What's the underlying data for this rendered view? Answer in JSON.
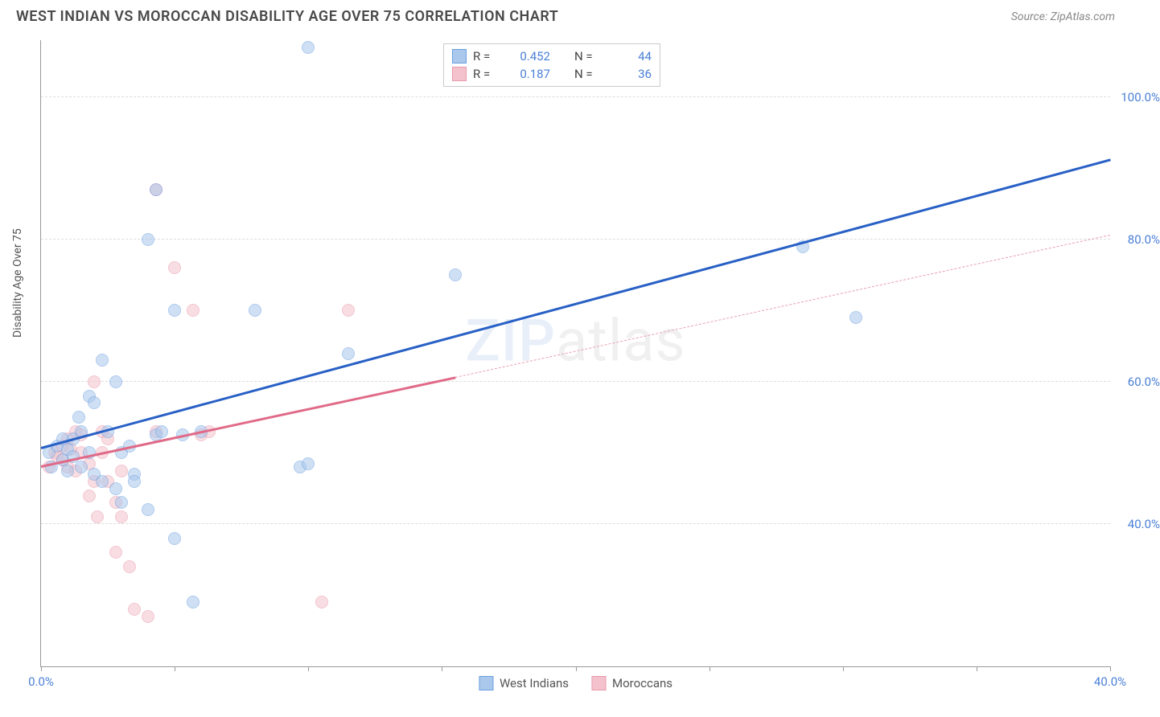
{
  "title": "WEST INDIAN VS MOROCCAN DISABILITY AGE OVER 75 CORRELATION CHART",
  "source": "Source: ZipAtlas.com",
  "y_axis_label": "Disability Age Over 75",
  "watermark": {
    "part1": "ZIP",
    "part2": "atlas"
  },
  "chart": {
    "type": "scatter",
    "background_color": "#ffffff",
    "grid_color": "#dddddd",
    "axis_color": "#999999",
    "tick_label_color": "#4a7fd6",
    "xlim": [
      0,
      40
    ],
    "ylim": [
      20,
      108
    ],
    "x_ticks": [
      0,
      5,
      10,
      15,
      20,
      25,
      30,
      35,
      40
    ],
    "x_tick_labels": {
      "0": "0.0%",
      "40": "40.0%"
    },
    "y_gridlines": [
      40,
      60,
      80,
      100
    ],
    "y_tick_labels": {
      "40": "40.0%",
      "60": "60.0%",
      "80": "80.0%",
      "100": "100.0%"
    },
    "marker_size": 16,
    "marker_opacity": 0.55
  },
  "series": {
    "west_indians": {
      "label": "West Indians",
      "fill_color": "#a9c8ec",
      "stroke_color": "#6c9fe0",
      "points": [
        [
          0.3,
          50
        ],
        [
          0.4,
          48
        ],
        [
          0.6,
          51
        ],
        [
          0.8,
          49
        ],
        [
          0.8,
          52
        ],
        [
          1.0,
          47.5
        ],
        [
          1.0,
          50.5
        ],
        [
          1.2,
          49.5
        ],
        [
          1.2,
          52
        ],
        [
          1.4,
          55
        ],
        [
          1.5,
          48
        ],
        [
          1.5,
          53
        ],
        [
          1.8,
          50
        ],
        [
          1.8,
          58
        ],
        [
          2.0,
          47
        ],
        [
          2.0,
          57
        ],
        [
          2.3,
          46
        ],
        [
          2.3,
          63
        ],
        [
          2.5,
          53
        ],
        [
          2.8,
          45
        ],
        [
          2.8,
          60
        ],
        [
          3.0,
          43
        ],
        [
          3.0,
          50
        ],
        [
          3.3,
          51
        ],
        [
          3.5,
          47
        ],
        [
          3.5,
          46
        ],
        [
          4.0,
          42
        ],
        [
          4.0,
          80
        ],
        [
          4.3,
          52.5
        ],
        [
          4.3,
          87
        ],
        [
          4.5,
          53
        ],
        [
          5.0,
          70
        ],
        [
          5.0,
          38
        ],
        [
          5.3,
          52.5
        ],
        [
          5.7,
          29
        ],
        [
          6.0,
          53
        ],
        [
          8.0,
          70
        ],
        [
          9.7,
          48
        ],
        [
          10.0,
          48.5
        ],
        [
          10.0,
          107
        ],
        [
          11.5,
          64
        ],
        [
          15.5,
          75
        ],
        [
          28.5,
          79
        ],
        [
          30.5,
          69
        ]
      ],
      "trend": {
        "x1": 0,
        "y1": 50.5,
        "x2": 40,
        "y2": 91,
        "color": "#2860c5",
        "width": 2.8
      },
      "R": "0.452",
      "N": "44"
    },
    "moroccans": {
      "label": "Moroccans",
      "fill_color": "#f4c2cc",
      "stroke_color": "#e99aac",
      "points": [
        [
          0.3,
          48
        ],
        [
          0.5,
          50
        ],
        [
          0.6,
          49.5
        ],
        [
          0.8,
          49
        ],
        [
          0.8,
          51
        ],
        [
          1.0,
          48
        ],
        [
          1.0,
          52
        ],
        [
          1.1,
          50.5
        ],
        [
          1.3,
          47.5
        ],
        [
          1.3,
          53
        ],
        [
          1.5,
          50
        ],
        [
          1.5,
          52.5
        ],
        [
          1.8,
          44
        ],
        [
          1.8,
          48.5
        ],
        [
          2.0,
          46
        ],
        [
          2.0,
          60
        ],
        [
          2.1,
          41
        ],
        [
          2.3,
          50
        ],
        [
          2.3,
          53
        ],
        [
          2.5,
          46
        ],
        [
          2.5,
          52
        ],
        [
          2.8,
          43
        ],
        [
          2.8,
          36
        ],
        [
          3.0,
          41
        ],
        [
          3.0,
          47.5
        ],
        [
          3.3,
          34
        ],
        [
          3.5,
          28
        ],
        [
          4.0,
          27
        ],
        [
          4.3,
          87
        ],
        [
          4.3,
          53
        ],
        [
          5.0,
          76
        ],
        [
          5.7,
          70
        ],
        [
          6.0,
          52.5
        ],
        [
          6.3,
          53
        ],
        [
          10.5,
          29
        ],
        [
          11.5,
          70
        ]
      ],
      "trend_solid": {
        "x1": 0,
        "y1": 48,
        "x2": 15.5,
        "y2": 60.5,
        "color": "#e06a88",
        "width": 2.5
      },
      "trend_dash": {
        "x1": 15.5,
        "y1": 60.5,
        "x2": 40,
        "y2": 80.5,
        "color": "#e9a0b0",
        "width": 1.5
      },
      "R": "0.187",
      "N": "36"
    }
  },
  "legend_box": {
    "r_label": "R =",
    "n_label": "N ="
  },
  "bottom_legend": [
    "west_indians",
    "moroccans"
  ]
}
